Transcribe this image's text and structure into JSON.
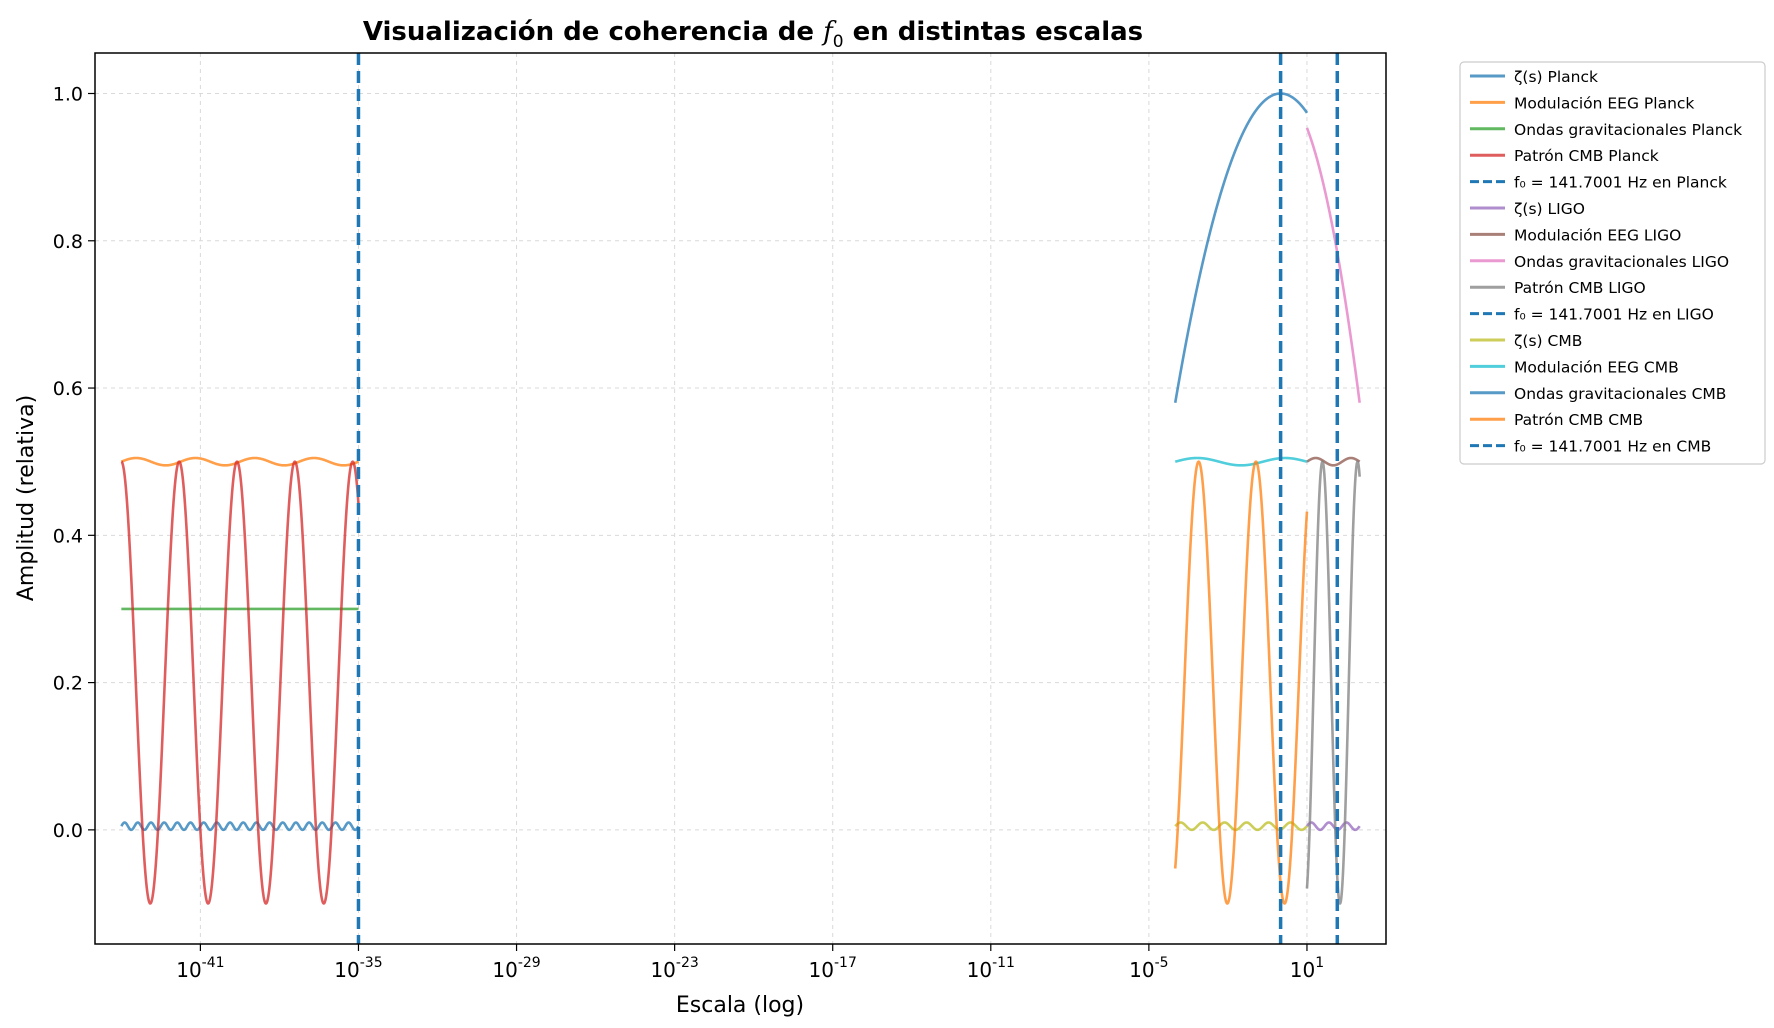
{
  "chart_data": {
    "type": "line",
    "title": "Visualización de coherencia de f₀ en distintas escalas",
    "title_prefix": "Visualización de coherencia de ",
    "title_symbol": "f",
    "title_subscript": "0",
    "title_suffix": " en distintas escalas",
    "xlabel": "Escala (log)",
    "ylabel": "Amplitud (relativa)",
    "x_scale": "log",
    "xlim": [
      1e-45,
      10000.0
    ],
    "ylim": [
      -0.155,
      1.055
    ],
    "grid": true,
    "legend_position": "outside-right",
    "x_ticks": [
      {
        "exp": -41,
        "base": "10",
        "label": "-41"
      },
      {
        "exp": -35,
        "base": "10",
        "label": "-35"
      },
      {
        "exp": -29,
        "base": "10",
        "label": "-29"
      },
      {
        "exp": -23,
        "base": "10",
        "label": "-23"
      },
      {
        "exp": -17,
        "base": "10",
        "label": "-17"
      },
      {
        "exp": -11,
        "base": "10",
        "label": "-11"
      },
      {
        "exp": -5,
        "base": "10",
        "label": "-5"
      },
      {
        "exp": 1,
        "base": "10",
        "label": "1"
      }
    ],
    "y_ticks": [
      {
        "value": 0.0,
        "label": "0.0"
      },
      {
        "value": 0.2,
        "label": "0.2"
      },
      {
        "value": 0.4,
        "label": "0.4"
      },
      {
        "value": 0.6,
        "label": "0.6"
      },
      {
        "value": 0.8,
        "label": "0.8"
      },
      {
        "value": 1.0,
        "label": "1.0"
      }
    ],
    "series": [
      {
        "name": "ζ(s) Planck",
        "color": "#1f77b4",
        "style": "solid",
        "kind": "oscillation",
        "x_range": [
          1e-44,
          1e-35
        ],
        "center": 0.005,
        "amplitude": 0.005,
        "cycles": 18
      },
      {
        "name": "Modulación EEG Planck",
        "color": "#ff7f0e",
        "style": "solid",
        "kind": "oscillation",
        "x_range": [
          1e-44,
          1e-35
        ],
        "center": 0.5,
        "amplitude": 0.005,
        "cycles": 4,
        "phase": 0
      },
      {
        "name": "Ondas gravitacionales Planck",
        "color": "#2ca02c",
        "style": "solid",
        "kind": "constant",
        "x_range": [
          1e-44,
          1e-35
        ],
        "value": 0.3
      },
      {
        "name": "Patrón CMB Planck",
        "color": "#d62728",
        "style": "solid",
        "kind": "oscillation",
        "x_range": [
          1e-44,
          1e-35
        ],
        "center": 0.2,
        "amplitude": 0.3,
        "cycles": 4.1,
        "phase": 1.5708
      },
      {
        "name": "f₀ = 141.7001 Hz en Planck",
        "color": "#1f77b4",
        "style": "dashed",
        "kind": "vline",
        "x": 1e-35
      },
      {
        "name": "ζ(s) LIGO",
        "color": "#9467bd",
        "style": "solid",
        "kind": "oscillation",
        "x_range": [
          10,
          1000
        ],
        "center": 0.005,
        "amplitude": 0.005,
        "cycles": 3
      },
      {
        "name": "Modulación EEG LIGO",
        "color": "#8c564b",
        "style": "solid",
        "kind": "oscillation",
        "x_range": [
          10,
          1000
        ],
        "center": 0.5,
        "amplitude": 0.005,
        "cycles": 1.5,
        "phase": 0
      },
      {
        "name": "Ondas gravitacionales LIGO",
        "color": "#e377c2",
        "style": "solid",
        "kind": "gaussian",
        "x_range": [
          10,
          1000
        ],
        "peak": 1.0,
        "peak_x": 1,
        "floor": 0.58
      },
      {
        "name": "Patrón CMB LIGO",
        "color": "#7f7f7f",
        "style": "solid",
        "kind": "oscillation",
        "x_range": [
          10,
          1000
        ],
        "center": 0.2,
        "amplitude": 0.3,
        "cycles": 1.5,
        "phase": -1.2
      },
      {
        "name": "f₀ = 141.7001 Hz en LIGO",
        "color": "#1f77b4",
        "style": "dashed",
        "kind": "vline",
        "x": 141.7001
      },
      {
        "name": "ζ(s) CMB",
        "color": "#bcbd22",
        "style": "solid",
        "kind": "oscillation",
        "x_range": [
          0.0001,
          10
        ],
        "center": 0.005,
        "amplitude": 0.005,
        "cycles": 6
      },
      {
        "name": "Modulación EEG CMB",
        "color": "#17becf",
        "style": "solid",
        "kind": "oscillation",
        "x_range": [
          0.0001,
          10
        ],
        "center": 0.5,
        "amplitude": 0.005,
        "cycles": 1.5,
        "phase": 0
      },
      {
        "name": "Ondas gravitacionales CMB",
        "color": "#1f77b4",
        "style": "solid",
        "kind": "gaussian",
        "x_range": [
          0.0001,
          10
        ],
        "peak": 1.0,
        "peak_x": 1,
        "floor": 0.58
      },
      {
        "name": "Patrón CMB CMB",
        "color": "#ff7f0e",
        "style": "solid",
        "kind": "oscillation",
        "x_range": [
          0.0001,
          10
        ],
        "center": 0.2,
        "amplitude": 0.3,
        "cycles": 2.3,
        "phase": -1.0
      },
      {
        "name": "f₀ = 141.7001 Hz en CMB",
        "color": "#1f77b4",
        "style": "dashed",
        "kind": "vline",
        "x": 1
      }
    ]
  }
}
